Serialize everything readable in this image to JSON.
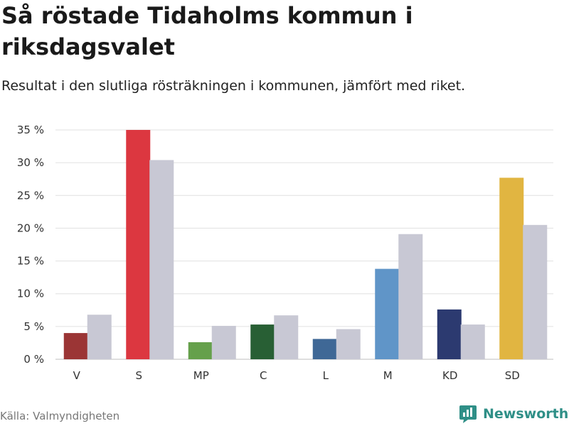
{
  "title": "Så röstade Tidaholms kommun i riksdagsvalet",
  "subtitle": "Resultat i den slutliga rösträkningen i kommunen, jämfört med riket.",
  "source": "Källa: Valmyndigheten",
  "brand": {
    "name": "Newsworthy",
    "icon": "newsworthy-logo-icon",
    "color": "#2f8f87"
  },
  "chart_data": {
    "type": "bar",
    "categories": [
      "V",
      "S",
      "MP",
      "C",
      "L",
      "M",
      "KD",
      "SD"
    ],
    "series": [
      {
        "name": "Tidaholms kommun",
        "values": [
          4.0,
          35.0,
          2.6,
          5.3,
          3.1,
          13.8,
          7.6,
          27.7
        ],
        "colors": [
          "#9b3535",
          "#dc3740",
          "#65a04b",
          "#285f34",
          "#3f6896",
          "#6095c8",
          "#2c3a70",
          "#e1b541"
        ]
      },
      {
        "name": "Riket",
        "values": [
          6.8,
          30.4,
          5.1,
          6.7,
          4.6,
          19.1,
          5.3,
          20.5
        ],
        "colors": [
          "#c8c8d4",
          "#c8c8d4",
          "#c8c8d4",
          "#c8c8d4",
          "#c8c8d4",
          "#c8c8d4",
          "#c8c8d4",
          "#c8c8d4"
        ]
      }
    ],
    "yticks": [
      0,
      5,
      10,
      15,
      20,
      25,
      30,
      35
    ],
    "ytick_labels": [
      "0 %",
      "5 %",
      "10 %",
      "15 %",
      "20 %",
      "25 %",
      "30 %",
      "35 %"
    ],
    "ylim": [
      0,
      35
    ],
    "xlabel": "",
    "ylabel": "",
    "grid": true
  }
}
